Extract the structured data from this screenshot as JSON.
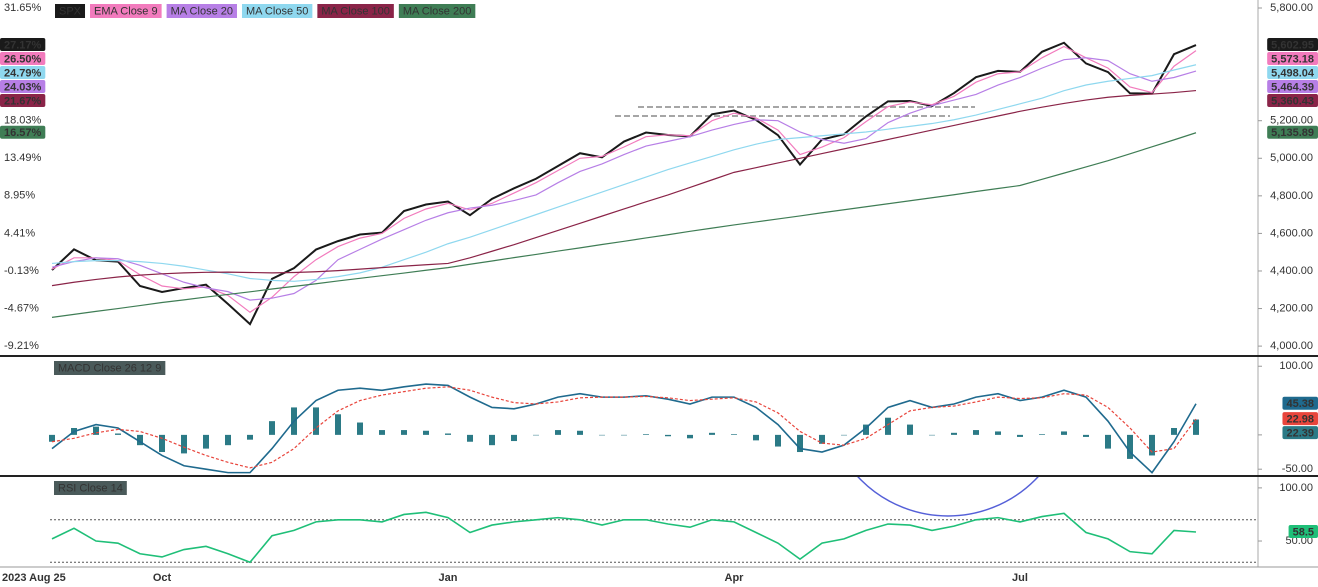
{
  "chart_data": [
    {
      "type": "line",
      "series": [
        {
          "name": "SPX",
          "color": "#1a1a1a",
          "last_label": "5,602.95",
          "pct_label": "27.17%",
          "values": [
            4405,
            4515,
            4457,
            4450,
            4320,
            4288,
            4309,
            4327,
            4224,
            4117,
            4358,
            4415,
            4514,
            4559,
            4594,
            4604,
            4719,
            4754,
            4770,
            4697,
            4784,
            4840,
            4891,
            4959,
            5027,
            5005,
            5089,
            5137,
            5124,
            5117,
            5234,
            5254,
            5204,
            5123,
            4967,
            5100,
            5128,
            5223,
            5303,
            5305,
            5278,
            5347,
            5432,
            5465,
            5460,
            5567,
            5615,
            5505,
            5459,
            5346,
            5344,
            5554,
            5602.95
          ]
        },
        {
          "name": "EMA Close 9",
          "color": "#f27bbd",
          "last_label": "5,573.18",
          "pct_label": "26.50%",
          "values": [
            4410,
            4470,
            4470,
            4455,
            4380,
            4320,
            4305,
            4315,
            4270,
            4180,
            4260,
            4370,
            4460,
            4530,
            4575,
            4600,
            4680,
            4730,
            4760,
            4725,
            4760,
            4815,
            4870,
            4935,
            5000,
            5010,
            5060,
            5115,
            5125,
            5120,
            5200,
            5240,
            5215,
            5150,
            5020,
            5060,
            5110,
            5195,
            5275,
            5300,
            5285,
            5330,
            5405,
            5450,
            5460,
            5535,
            5595,
            5535,
            5480,
            5380,
            5350,
            5490,
            5573.18
          ]
        },
        {
          "name": "MA Close 20",
          "color": "#b77fe6",
          "last_label": "5,464.39",
          "pct_label": "24.03%",
          "values": [
            4420,
            4450,
            4470,
            4465,
            4430,
            4385,
            4340,
            4310,
            4290,
            4245,
            4255,
            4280,
            4350,
            4460,
            4515,
            4570,
            4620,
            4670,
            4710,
            4735,
            4750,
            4775,
            4805,
            4870,
            4930,
            4970,
            5020,
            5065,
            5090,
            5115,
            5150,
            5180,
            5205,
            5200,
            5140,
            5100,
            5080,
            5105,
            5190,
            5240,
            5280,
            5310,
            5340,
            5390,
            5430,
            5480,
            5525,
            5535,
            5520,
            5450,
            5410,
            5430,
            5464.39
          ]
        },
        {
          "name": "MA Close 50",
          "color": "#8fd8ef",
          "last_label": "5,498.04",
          "pct_label": "24.79%",
          "values": [
            4440,
            4450,
            4455,
            4455,
            4450,
            4440,
            4425,
            4405,
            4385,
            4360,
            4350,
            4345,
            4355,
            4370,
            4390,
            4420,
            4460,
            4500,
            4545,
            4580,
            4620,
            4660,
            4700,
            4740,
            4780,
            4820,
            4860,
            4900,
            4940,
            4975,
            5010,
            5045,
            5075,
            5100,
            5110,
            5120,
            5130,
            5140,
            5155,
            5170,
            5185,
            5205,
            5230,
            5260,
            5290,
            5320,
            5360,
            5390,
            5410,
            5425,
            5440,
            5470,
            5498.04
          ]
        },
        {
          "name": "MA Close 100",
          "color": "#8a2448",
          "last_label": "5,360.43",
          "pct_label": "21.67%",
          "values": [
            4322,
            4340,
            4355,
            4368,
            4378,
            4385,
            4390,
            4393,
            4394,
            4392,
            4390,
            4392,
            4396,
            4402,
            4410,
            4418,
            4426,
            4433,
            4440,
            4470,
            4505,
            4540,
            4578,
            4616,
            4654,
            4692,
            4730,
            4768,
            4805,
            4845,
            4885,
            4925,
            4950,
            4975,
            5000,
            5025,
            5050,
            5075,
            5100,
            5125,
            5150,
            5175,
            5200,
            5225,
            5250,
            5272,
            5292,
            5310,
            5325,
            5335,
            5342,
            5350,
            5360.43
          ]
        },
        {
          "name": "MA Close 200",
          "color": "#3f7d55",
          "last_label": "5,135.89",
          "pct_label": "16.57%",
          "values": [
            4153,
            4169,
            4185,
            4200,
            4216,
            4232,
            4246,
            4261,
            4275,
            4289,
            4304,
            4318,
            4332,
            4347,
            4361,
            4375,
            4389,
            4404,
            4418,
            4436,
            4453,
            4471,
            4488,
            4506,
            4523,
            4541,
            4558,
            4576,
            4593,
            4611,
            4628,
            4645,
            4661,
            4677,
            4693,
            4710,
            4726,
            4742,
            4758,
            4774,
            4790,
            4806,
            4823,
            4839,
            4855,
            4888,
            4921,
            4954,
            4987,
            5024,
            5061,
            5098,
            5135.89
          ]
        }
      ],
      "ylim": [
        3958,
        5832
      ],
      "yticks": [
        {
          "value": 4000,
          "label": "4,000.00"
        },
        {
          "value": 4200,
          "label": "4,200.00"
        },
        {
          "value": 4400,
          "label": "4,400.00"
        },
        {
          "value": 4600,
          "label": "4,600.00"
        },
        {
          "value": 4800,
          "label": "4,800.00"
        },
        {
          "value": 5000,
          "label": "5,000.00"
        },
        {
          "value": 5200,
          "label": "5,200.00"
        },
        {
          "value": 5800,
          "label": "5,800.00"
        }
      ],
      "y2lim": [
        -10.16,
        32.37
      ],
      "y2ticks": [
        {
          "value": -9.21,
          "label": "-9.21%"
        },
        {
          "value": -4.67,
          "label": "-4.67%"
        },
        {
          "value": -0.13,
          "label": "-0.13%"
        },
        {
          "value": 4.41,
          "label": "4.41%"
        },
        {
          "value": 8.95,
          "label": "8.95%"
        },
        {
          "value": 13.49,
          "label": "13.49%"
        },
        {
          "value": 18.03,
          "label": "18.03%"
        },
        {
          "value": 31.65,
          "label": "31.65%"
        }
      ]
    },
    {
      "type": "combo",
      "title": "MACD Close 26 12 9",
      "series": [
        {
          "style": "bar",
          "color": "#2b7a86",
          "values": [
            -10,
            10,
            12,
            2,
            -15,
            -25,
            -27,
            -20,
            -15,
            -7,
            20,
            40,
            40,
            30,
            18,
            7,
            7,
            6,
            2,
            -10,
            -15,
            -9,
            0,
            7,
            6,
            0,
            0,
            1,
            -2,
            -5,
            3,
            1,
            -8,
            -17,
            -25,
            -13,
            0,
            15,
            25,
            15,
            0,
            3,
            7,
            5,
            -3,
            1,
            5,
            -3,
            -20,
            -35,
            -30,
            10,
            22.39
          ]
        },
        {
          "style": "line",
          "color": "#1f6a8e",
          "values": [
            -20,
            5,
            15,
            10,
            -10,
            -30,
            -45,
            -50,
            -55,
            -55,
            -20,
            20,
            50,
            65,
            68,
            65,
            70,
            74,
            72,
            55,
            40,
            38,
            45,
            55,
            60,
            55,
            55,
            57,
            52,
            45,
            55,
            55,
            40,
            15,
            -20,
            -25,
            -15,
            10,
            40,
            50,
            40,
            45,
            55,
            60,
            50,
            55,
            65,
            55,
            20,
            -25,
            -55,
            -10,
            45.38
          ]
        },
        {
          "style": "dashed",
          "color": "#e8453c",
          "values": [
            -10,
            -5,
            3,
            8,
            5,
            -5,
            -18,
            -30,
            -40,
            -48,
            -40,
            -20,
            10,
            35,
            50,
            58,
            63,
            68,
            70,
            65,
            55,
            47,
            45,
            48,
            54,
            55,
            55,
            56,
            54,
            50,
            52,
            54,
            48,
            32,
            5,
            -12,
            -15,
            -5,
            15,
            35,
            40,
            42,
            48,
            55,
            53,
            54,
            60,
            58,
            40,
            10,
            -25,
            -20,
            22.98
          ]
        }
      ],
      "ylim": [
        -57,
        112
      ],
      "yticks": [
        {
          "value": -50,
          "label": "-50.00"
        },
        0,
        {
          "value": 100,
          "label": "100.00"
        }
      ]
    },
    {
      "type": "line",
      "title": "RSI Close 14",
      "categories": [
        "2023 Aug 25",
        null,
        null,
        null,
        null,
        "Oct",
        null,
        null,
        null,
        null,
        null,
        null,
        null,
        null,
        null,
        null,
        null,
        null,
        "Jan",
        null,
        null,
        null,
        null,
        null,
        null,
        null,
        null,
        null,
        null,
        null,
        null,
        "Apr",
        null,
        null,
        null,
        null,
        null,
        null,
        null,
        null,
        null,
        null,
        null,
        null,
        "Jul",
        null,
        null,
        null,
        null,
        null,
        null,
        null,
        null
      ],
      "series": [
        {
          "style": "line",
          "color": "#1fbf78",
          "values": [
            52,
            62,
            50,
            48,
            38,
            35,
            42,
            45,
            38,
            30,
            55,
            60,
            68,
            70,
            70,
            68,
            75,
            77,
            72,
            58,
            65,
            68,
            70,
            72,
            70,
            65,
            70,
            70,
            66,
            63,
            70,
            68,
            58,
            48,
            33,
            48,
            52,
            60,
            66,
            65,
            60,
            64,
            70,
            72,
            68,
            73,
            76,
            58,
            52,
            40,
            38,
            60,
            58.5
          ]
        }
      ],
      "ylim": [
        26.5,
        109.3
      ],
      "yticks": [
        {
          "value": 50,
          "label": "50.00"
        },
        {
          "value": 100,
          "label": "100.00"
        }
      ],
      "reference_lines": [
        70,
        30
      ]
    }
  ]
}
